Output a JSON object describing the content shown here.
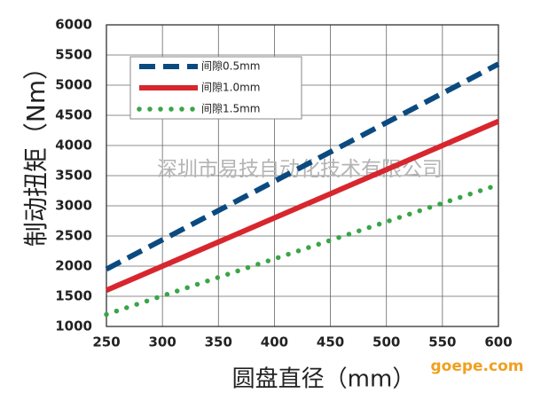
{
  "chart_data": {
    "type": "line",
    "x": [
      250,
      600
    ],
    "series": [
      {
        "name": "间隙0.5mm",
        "color": "#0b4a80",
        "style": "dashed",
        "values": [
          1950,
          5350
        ]
      },
      {
        "name": "间隙1.0mm",
        "color": "#d8262e",
        "style": "solid",
        "values": [
          1600,
          4400
        ]
      },
      {
        "name": "间隙1.5mm",
        "color": "#3aa547",
        "style": "dotted",
        "values": [
          1200,
          3350
        ]
      }
    ],
    "xlim": [
      250,
      600
    ],
    "xticks": [
      250,
      300,
      350,
      400,
      450,
      500,
      550,
      600
    ],
    "ylim": [
      1000,
      6000
    ],
    "yticks": [
      1000,
      1500,
      2000,
      2500,
      3000,
      3500,
      4000,
      4500,
      5000,
      5500,
      6000
    ],
    "grid": true,
    "legend": "top-left",
    "xlabel": "圆盘直径（mm）",
    "ylabel": "制动扭矩（Nm）",
    "annotations": [
      "深圳市易技自动化技术有限公司",
      "goepe.com"
    ]
  }
}
